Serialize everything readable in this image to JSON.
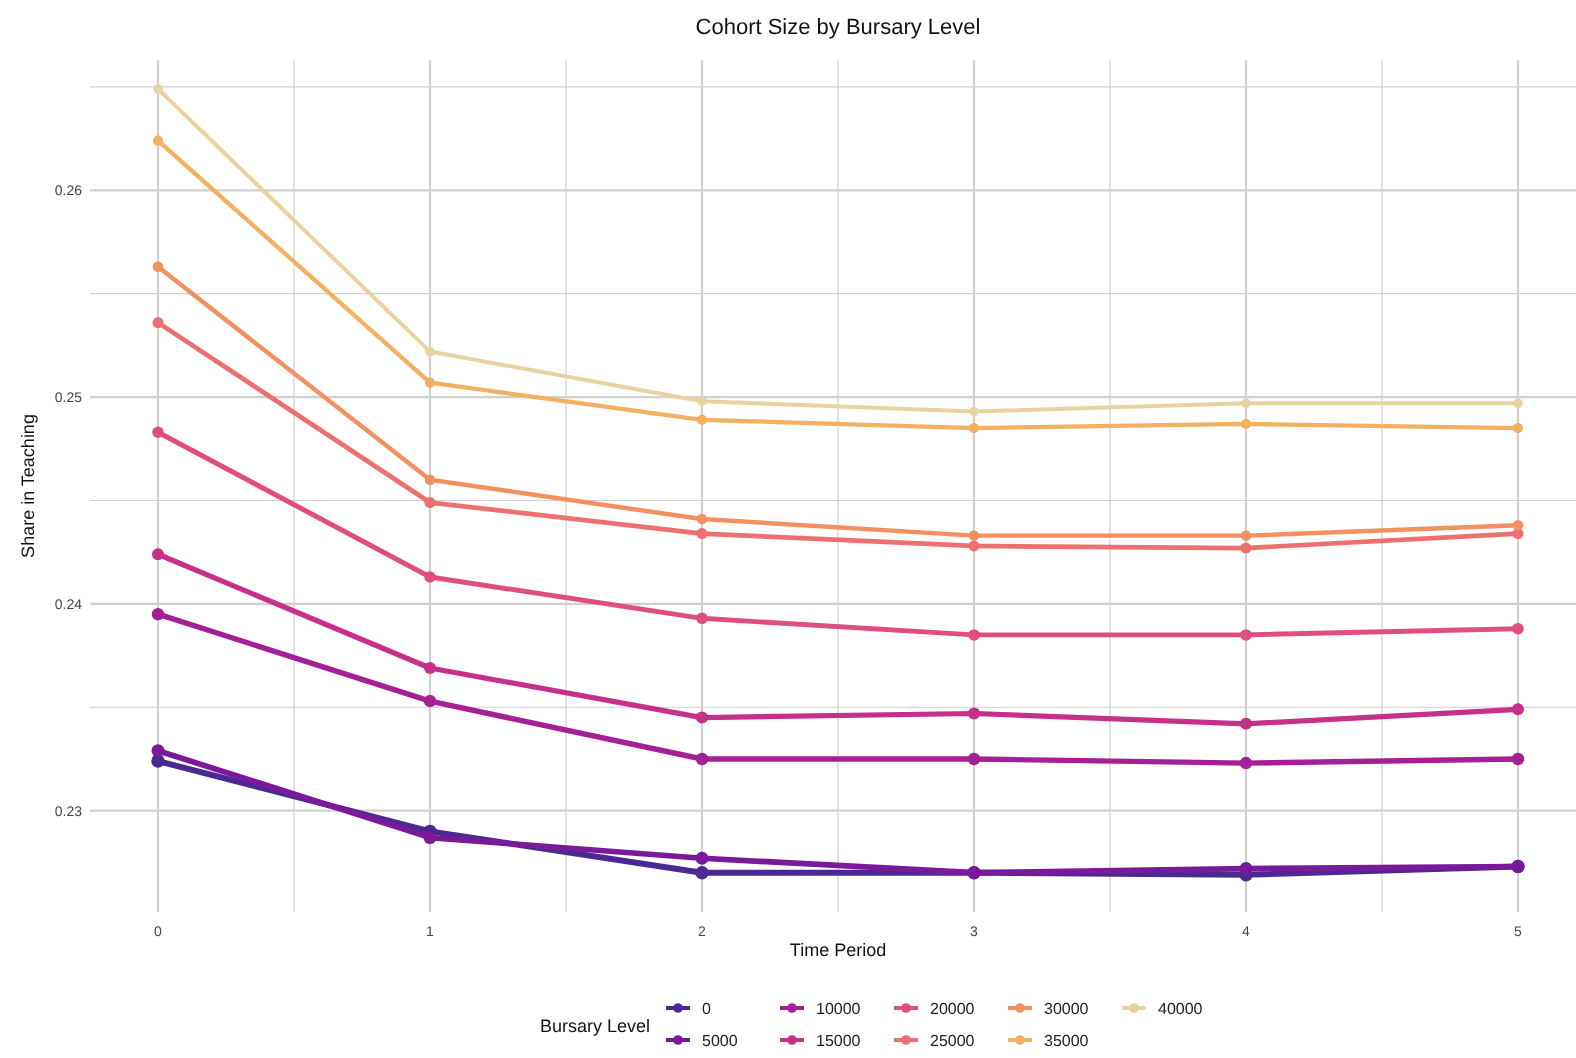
{
  "chart_data": {
    "type": "line",
    "title": "Cohort Size by Bursary Level",
    "xlabel": "Time Period",
    "ylabel": "Share in Teaching",
    "legend_title": "Bursary Level",
    "x": [
      0,
      1,
      2,
      3,
      4,
      5
    ],
    "xlim": [
      -0.25,
      5.25
    ],
    "xticks": [
      0,
      {
        "value": 0.5,
        "label": null
      },
      1,
      {
        "value": 1.5,
        "label": null
      },
      2,
      {
        "value": 2.5,
        "label": null
      },
      3,
      {
        "value": 3.5,
        "label": null
      },
      4,
      {
        "value": 4.5,
        "label": null
      },
      5
    ],
    "ylim": [
      0.2251,
      0.2663
    ],
    "yticks": [
      0.23,
      {
        "value": 0.235,
        "label": null
      },
      0.24,
      {
        "value": 0.245,
        "label": null
      },
      0.25,
      {
        "value": 0.255,
        "label": null
      },
      0.26,
      {
        "value": 0.265,
        "label": null
      }
    ],
    "grid": true,
    "legend": "bottom",
    "marker": "circle",
    "line_style": "solid",
    "series": [
      {
        "name": "0",
        "color": "#4a2a92",
        "values": [
          0.2324,
          0.229,
          0.227,
          0.227,
          0.2269,
          0.2273
        ]
      },
      {
        "name": "5000",
        "color": "#7a1a9a",
        "values": [
          0.2329,
          0.2287,
          0.2277,
          0.227,
          0.2272,
          0.2273
        ]
      },
      {
        "name": "10000",
        "color": "#a52096",
        "values": [
          0.2395,
          0.2353,
          0.2325,
          0.2325,
          0.2323,
          0.2325
        ]
      },
      {
        "name": "15000",
        "color": "#c7308a",
        "values": [
          0.2424,
          0.2369,
          0.2345,
          0.2347,
          0.2342,
          0.2349
        ]
      },
      {
        "name": "20000",
        "color": "#e04f7a",
        "values": [
          0.2483,
          0.2413,
          0.2393,
          0.2385,
          0.2385,
          0.2388
        ]
      },
      {
        "name": "25000",
        "color": "#ee6f6f",
        "values": [
          0.2536,
          0.2449,
          0.2434,
          0.2428,
          0.2427,
          0.2434
        ]
      },
      {
        "name": "30000",
        "color": "#f39060",
        "values": [
          0.2563,
          0.246,
          0.2441,
          0.2433,
          0.2433,
          0.2438
        ]
      },
      {
        "name": "35000",
        "color": "#f2b060",
        "values": [
          0.2624,
          0.2507,
          0.2489,
          0.2485,
          0.2487,
          0.2485
        ]
      },
      {
        "name": "40000",
        "color": "#e8d3a0",
        "values": [
          0.2649,
          0.2522,
          0.2498,
          0.2493,
          0.2497,
          0.2497
        ]
      }
    ]
  }
}
